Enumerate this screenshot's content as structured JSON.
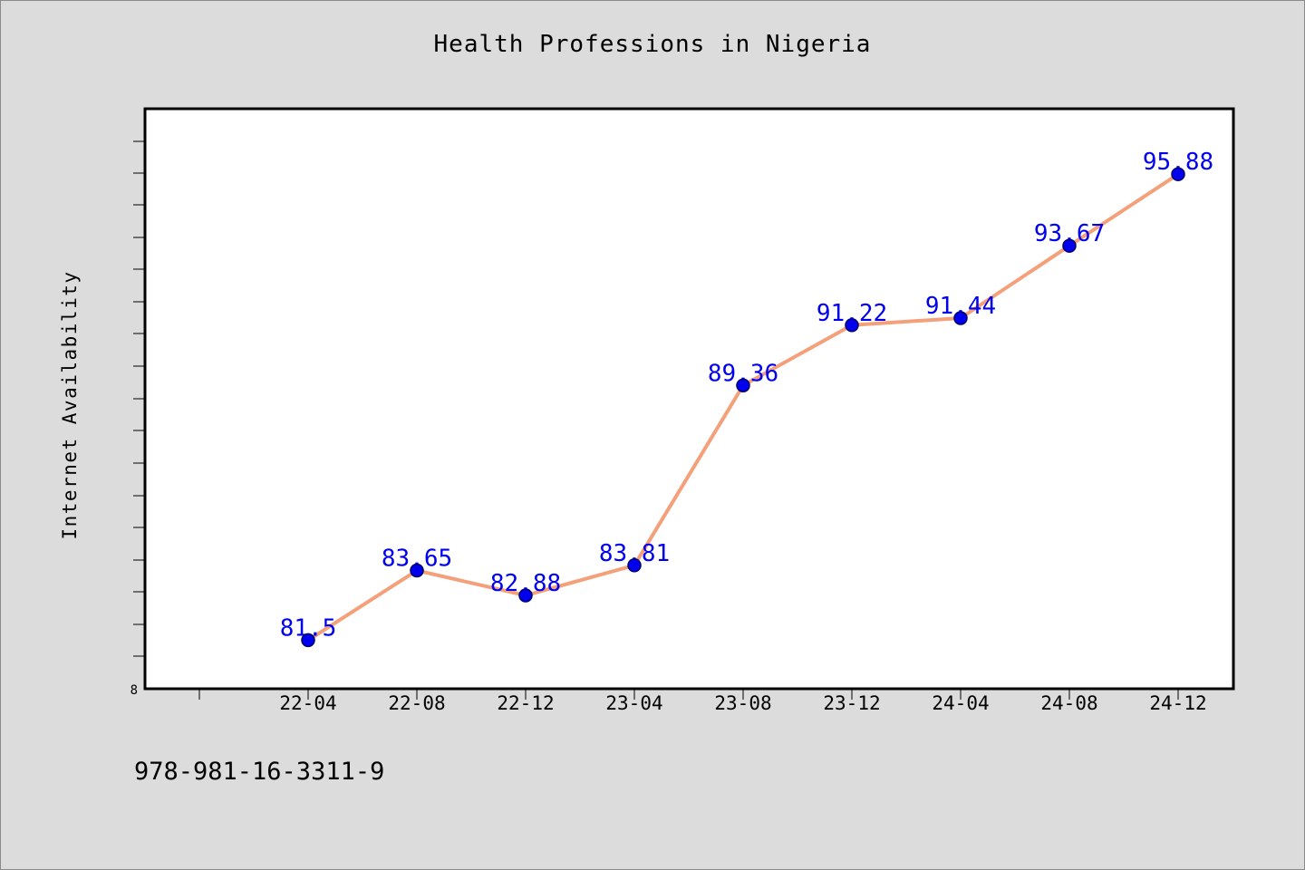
{
  "chart_data": {
    "type": "line",
    "title": "Health Professions in Nigeria",
    "ylabel": "Internet Availability",
    "xlabel": "",
    "categories": [
      "22-04",
      "22-08",
      "22-12",
      "23-04",
      "23-08",
      "23-12",
      "24-04",
      "24-08",
      "24-12"
    ],
    "series": [
      {
        "values": [
          81.5,
          83.65,
          82.88,
          83.81,
          89.36,
          91.22,
          91.44,
          93.67,
          95.88
        ],
        "data_labels": [
          "81.5",
          "83.65",
          "82.88",
          "83.81",
          "89.36",
          "91.22",
          "91.44",
          "93.67",
          "95.88"
        ]
      }
    ],
    "ylim": [
      80.0,
      97.9
    ],
    "y_tick_labels": [
      "8"
    ],
    "grid": false,
    "legend": "none",
    "colors": {
      "line": "#f4a07a",
      "marker": "#0000ee",
      "marker_edge": "#000066",
      "data_label": "#0000ee",
      "plot_background": "#ffffff",
      "figure_background": "#dcdcdc"
    }
  },
  "footer": {
    "isbn": "978-981-16-3311-9"
  }
}
